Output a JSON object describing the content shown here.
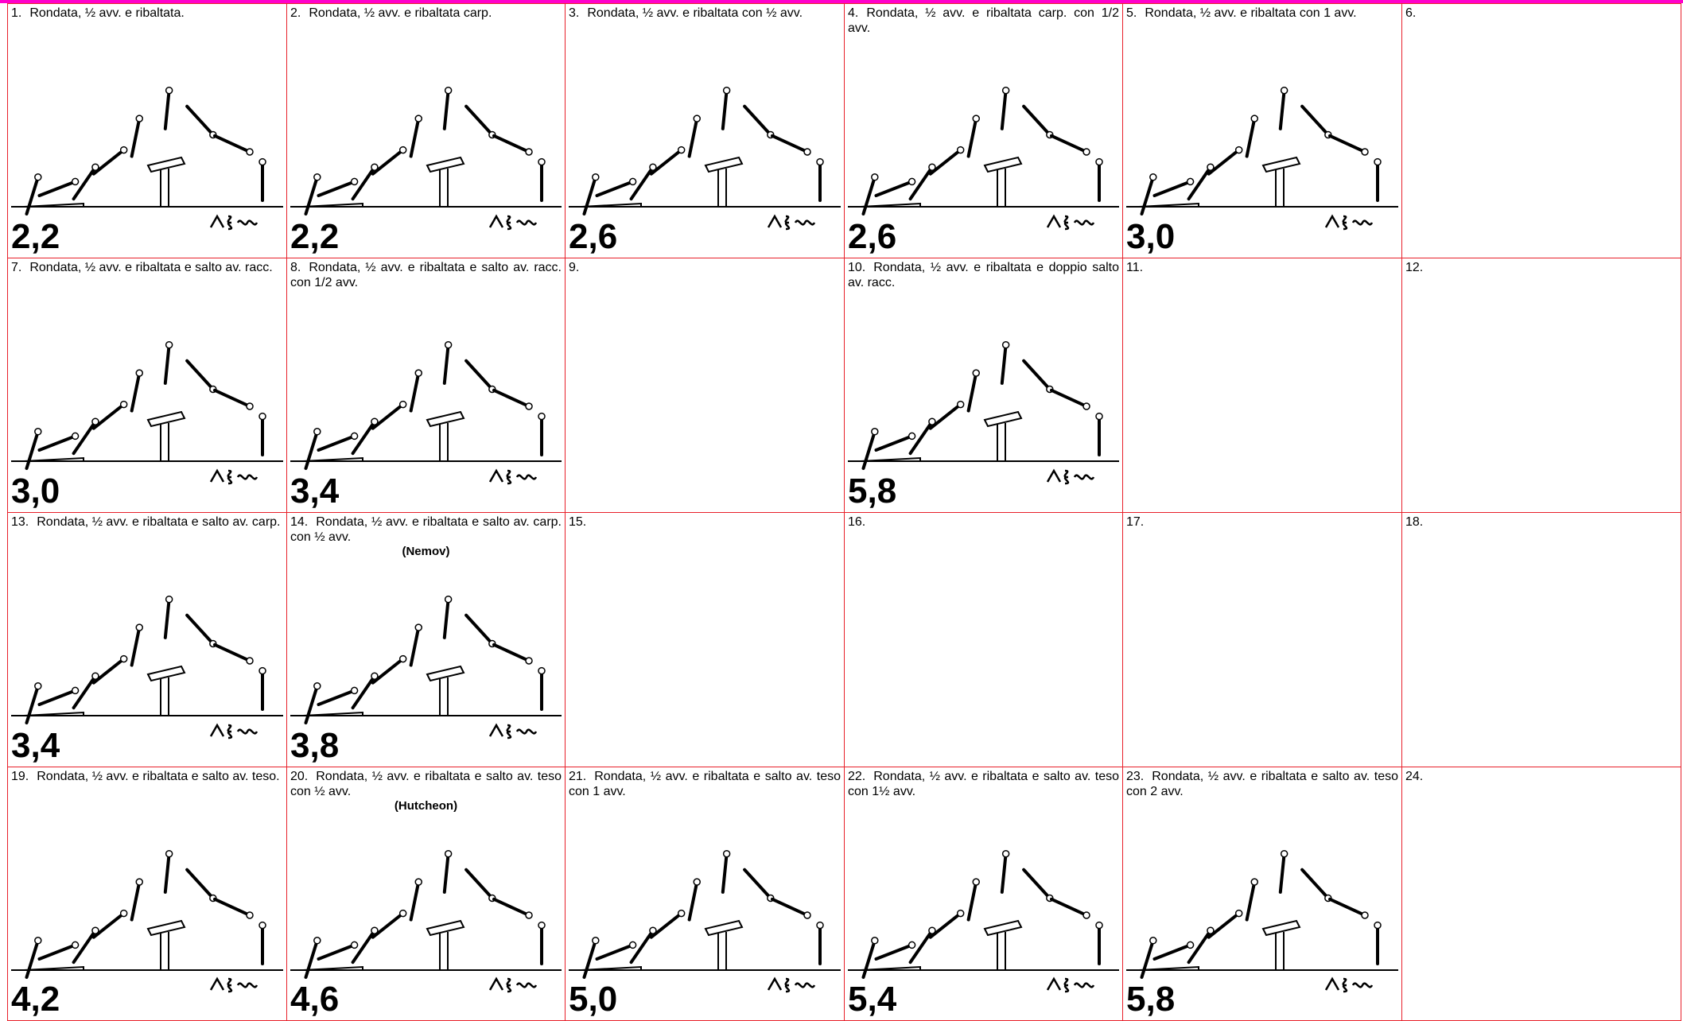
{
  "cells": [
    {
      "number": "1.",
      "description": "Rondata, ½  avv. e ribaltata.",
      "value": "2,2"
    },
    {
      "number": "2.",
      "description": "Rondata, ½  avv. e ribaltata carp.",
      "value": "2,2"
    },
    {
      "number": "3.",
      "description": "Rondata, ½  avv. e ribaltata con ½  avv.",
      "value": "2,6"
    },
    {
      "number": "4.",
      "description": "Rondata, ½  avv. e ribaltata carp. con 1/2 avv.",
      "value": "2,6"
    },
    {
      "number": "5.",
      "description": "Rondata, ½  avv. e ribaltata con 1 avv.",
      "value": "3,0"
    },
    {
      "number": "6."
    },
    {
      "number": "7.",
      "description": "Rondata, ½  avv. e ribaltata e salto av. racc.",
      "value": "3,0"
    },
    {
      "number": "8.",
      "description": "Rondata, ½ avv. e ribaltata e salto av. racc. con 1/2 avv.",
      "value": "3,4"
    },
    {
      "number": "9."
    },
    {
      "number": "10.",
      "description": "Rondata, ½ avv. e ribaltata e doppio salto av. racc.",
      "value": "5,8"
    },
    {
      "number": "11."
    },
    {
      "number": "12."
    },
    {
      "number": "13.",
      "description": "Rondata, ½  avv. e ribaltata e salto av. carp.",
      "value": "3,4"
    },
    {
      "number": "14.",
      "description": "Rondata, ½  avv. e ribaltata e salto av. carp. con ½  avv.",
      "name": "(Nemov)",
      "value": "3,8"
    },
    {
      "number": "15."
    },
    {
      "number": "16."
    },
    {
      "number": "17."
    },
    {
      "number": "18."
    },
    {
      "number": "19.",
      "description": "Rondata, ½  avv. e ribaltata e salto av. teso.",
      "value": "4,2"
    },
    {
      "number": "20.",
      "description": "Rondata, ½  avv. e ribaltata e salto av. teso con ½  avv.",
      "name": "(Hutcheon)",
      "value": "4,6"
    },
    {
      "number": "21.",
      "description": "Rondata, ½  avv. e ribaltata e salto av. teso con 1 avv.",
      "value": "5,0"
    },
    {
      "number": "22.",
      "description": "Rondata, ½  avv. e ribaltata e salto av. teso con 1½  avv.",
      "value": "5,4"
    },
    {
      "number": "23.",
      "description": "Rondata, ½  avv. e ribaltata e salto av. teso con 2 avv.",
      "value": "5,8"
    },
    {
      "number": "24."
    }
  ]
}
